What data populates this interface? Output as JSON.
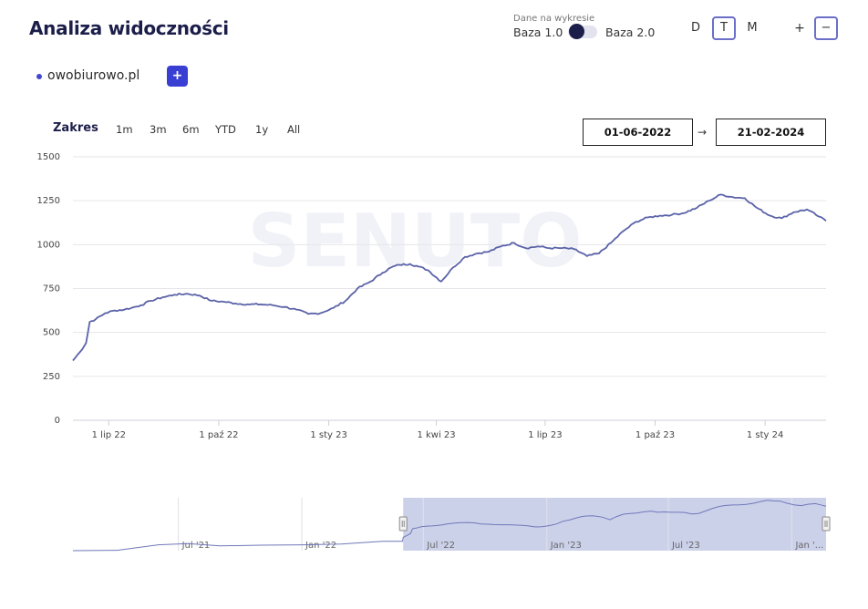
{
  "header": {
    "title": "Analiza widoczności",
    "base_caption": "Dane na wykresie",
    "base_left": "Baza 1.0",
    "base_right": "Baza 2.0",
    "dtm": [
      "D",
      "T",
      "M"
    ],
    "dtm_active": "T",
    "zoom_plus": "+",
    "zoom_minus": "−"
  },
  "domain": {
    "name": "owobiurowo.pl",
    "add_label": "+",
    "color": "#4046d3"
  },
  "range": {
    "label": "Zakres",
    "buttons": [
      "1m",
      "3m",
      "6m",
      "YTD",
      "1y",
      "All"
    ],
    "from": "01-06-2022",
    "to": "21-02-2024",
    "arrow": "→"
  },
  "watermark": "SENUTO",
  "chart_data": {
    "type": "line",
    "x_ticks": [
      "1 lip 22",
      "1 paź 22",
      "1 sty 23",
      "1 kwi 23",
      "1 lip 23",
      "1 paź 23",
      "1 sty 24"
    ],
    "y_ticks": [
      "0",
      "250",
      "500",
      "750",
      "1000",
      "1250",
      "1500"
    ],
    "ylim": [
      0,
      1500
    ],
    "xlim": [
      "2022-06-01",
      "2024-02-21"
    ],
    "grid": true,
    "line_color": "#5b63a8",
    "series": [
      {
        "x": [
          "2022-06-01",
          "2022-06-07",
          "2022-06-12",
          "2022-06-15",
          "2022-06-20",
          "2022-06-28",
          "2022-07-06",
          "2022-07-14",
          "2022-07-20",
          "2022-07-28",
          "2022-08-05",
          "2022-08-15",
          "2022-08-25",
          "2022-09-05",
          "2022-09-15",
          "2022-09-25",
          "2022-10-05",
          "2022-10-15",
          "2022-10-25",
          "2022-11-05",
          "2022-11-15",
          "2022-11-25",
          "2022-12-05",
          "2022-12-15",
          "2022-12-25",
          "2023-01-05",
          "2023-01-15",
          "2023-01-25",
          "2023-02-05",
          "2023-02-15",
          "2023-02-22",
          "2023-03-01",
          "2023-03-10",
          "2023-03-17",
          "2023-03-25",
          "2023-04-05",
          "2023-04-15",
          "2023-04-25",
          "2023-05-05",
          "2023-05-15",
          "2023-05-25",
          "2023-06-05",
          "2023-06-15",
          "2023-06-25",
          "2023-07-05",
          "2023-07-15",
          "2023-07-25",
          "2023-08-05",
          "2023-08-15",
          "2023-08-25",
          "2023-09-05",
          "2023-09-15",
          "2023-09-25",
          "2023-10-05",
          "2023-10-15",
          "2023-10-25",
          "2023-11-05",
          "2023-11-15",
          "2023-11-25",
          "2023-12-05",
          "2023-12-15",
          "2023-12-25",
          "2024-01-05",
          "2024-01-15",
          "2024-01-25",
          "2024-02-05",
          "2024-02-15",
          "2024-02-21"
        ],
        "y": [
          340,
          390,
          440,
          560,
          575,
          610,
          625,
          630,
          640,
          655,
          680,
          700,
          715,
          720,
          710,
          680,
          675,
          665,
          660,
          660,
          655,
          645,
          630,
          605,
          610,
          640,
          680,
          750,
          790,
          840,
          870,
          885,
          890,
          875,
          855,
          790,
          870,
          930,
          950,
          960,
          990,
          1010,
          980,
          990,
          980,
          980,
          975,
          935,
          950,
          1010,
          1080,
          1130,
          1155,
          1165,
          1170,
          1180,
          1210,
          1250,
          1285,
          1270,
          1265,
          1210,
          1165,
          1150,
          1185,
          1200,
          1160,
          1135
        ]
      }
    ],
    "navigator": {
      "x_ticks": [
        "Jul '21",
        "Jan '22",
        "Jul '22",
        "Jan '23",
        "Jul '23",
        "Jan '..."
      ]
    }
  }
}
